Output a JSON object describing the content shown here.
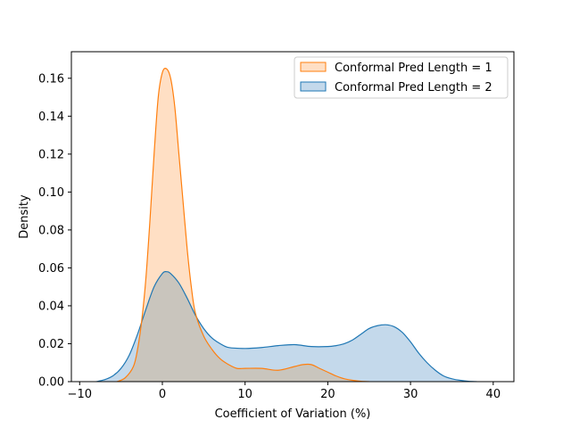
{
  "chart_data": {
    "type": "area",
    "xlabel": "Coefficient of Variation (%)",
    "ylabel": "Density",
    "xlim": [
      -11,
      42.5
    ],
    "ylim": [
      0,
      0.174
    ],
    "xticks": [
      -10,
      0,
      10,
      20,
      30,
      40
    ],
    "xtick_labels": [
      "−10",
      "0",
      "10",
      "20",
      "30",
      "40"
    ],
    "yticks": [
      0.0,
      0.02,
      0.04,
      0.06,
      0.08,
      0.1,
      0.12,
      0.14,
      0.16
    ],
    "ytick_labels": [
      "0.00",
      "0.02",
      "0.04",
      "0.06",
      "0.08",
      "0.10",
      "0.12",
      "0.14",
      "0.16"
    ],
    "grid": false,
    "legend_position": "top-right",
    "series": [
      {
        "name": "Conformal Pred Length = 1",
        "color": "#ff7f0e",
        "fill": "#ffdfc4",
        "x": [
          -5.5,
          -4.5,
          -3.5,
          -3,
          -2.5,
          -2,
          -1.5,
          -1,
          -0.5,
          0,
          0.5,
          1,
          1.5,
          2,
          2.5,
          3,
          3.5,
          4,
          5,
          6,
          7,
          8,
          9,
          10,
          12,
          14,
          16,
          17,
          18,
          19,
          20,
          21,
          22,
          23,
          24,
          25
        ],
        "y": [
          0.0,
          0.002,
          0.008,
          0.017,
          0.032,
          0.054,
          0.085,
          0.12,
          0.15,
          0.163,
          0.165,
          0.16,
          0.145,
          0.12,
          0.095,
          0.07,
          0.05,
          0.036,
          0.024,
          0.017,
          0.012,
          0.009,
          0.007,
          0.007,
          0.007,
          0.006,
          0.008,
          0.009,
          0.009,
          0.007,
          0.005,
          0.003,
          0.0015,
          0.0007,
          0.0002,
          0.0
        ]
      },
      {
        "name": "Conformal Pred Length = 2",
        "color": "#1f77b4",
        "fill": "#c4d9eb",
        "x": [
          -8,
          -7,
          -6,
          -5,
          -4,
          -3,
          -2,
          -1,
          0,
          0.5,
          1,
          2,
          3,
          4,
          5,
          6,
          7,
          8,
          10,
          12,
          14,
          16,
          18,
          20,
          21,
          22,
          23,
          24,
          25,
          26,
          27,
          28,
          29,
          30,
          31,
          32,
          33,
          34,
          35,
          36,
          37,
          38
        ],
        "y": [
          0.0,
          0.001,
          0.003,
          0.007,
          0.014,
          0.025,
          0.038,
          0.05,
          0.057,
          0.058,
          0.057,
          0.052,
          0.044,
          0.035,
          0.028,
          0.023,
          0.02,
          0.018,
          0.0175,
          0.018,
          0.019,
          0.0195,
          0.0185,
          0.0185,
          0.019,
          0.02,
          0.022,
          0.025,
          0.028,
          0.0295,
          0.03,
          0.029,
          0.026,
          0.021,
          0.015,
          0.01,
          0.006,
          0.003,
          0.0015,
          0.0007,
          0.0002,
          0.0
        ]
      }
    ],
    "overlap_fill": "#c9c5bd"
  }
}
